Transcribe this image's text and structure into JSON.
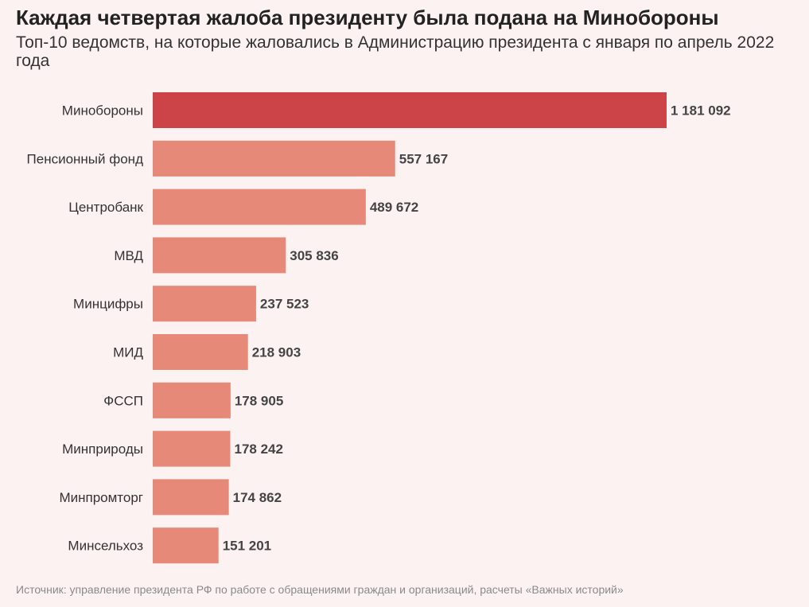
{
  "chart_data": {
    "type": "bar",
    "orientation": "horizontal",
    "title": "Каждая четвертая жалоба президенту была подана на Минобороны",
    "subtitle": "Топ-10 ведомств, на которые жаловались в Администрацию президента с января по апрель 2022 года",
    "categories": [
      "Минобороны",
      "Пенсионный фонд",
      "Центробанк",
      "МВД",
      "Минцифры",
      "МИД",
      "ФССП",
      "Минприроды",
      "Минпромторг",
      "Минсельхоз"
    ],
    "values": [
      1181092,
      557167,
      489672,
      305836,
      237523,
      218903,
      178905,
      178242,
      174862,
      151201
    ],
    "value_labels": [
      "1 181 092",
      "557 167",
      "489 672",
      "305 836",
      "237 523",
      "218 903",
      "178 905",
      "178 242",
      "174 862",
      "151 201"
    ],
    "xlim": [
      0,
      1181092
    ],
    "grid": false,
    "legend": "none",
    "colors": {
      "highlight": "#cc4447",
      "bar": "#e68979",
      "background": "#fdf2f2",
      "value_text": "#444444",
      "category_text": "#333333"
    }
  },
  "source": "Источник: управление президента РФ по работе с обращениями граждан и организаций, расчеты «Важных историй»"
}
